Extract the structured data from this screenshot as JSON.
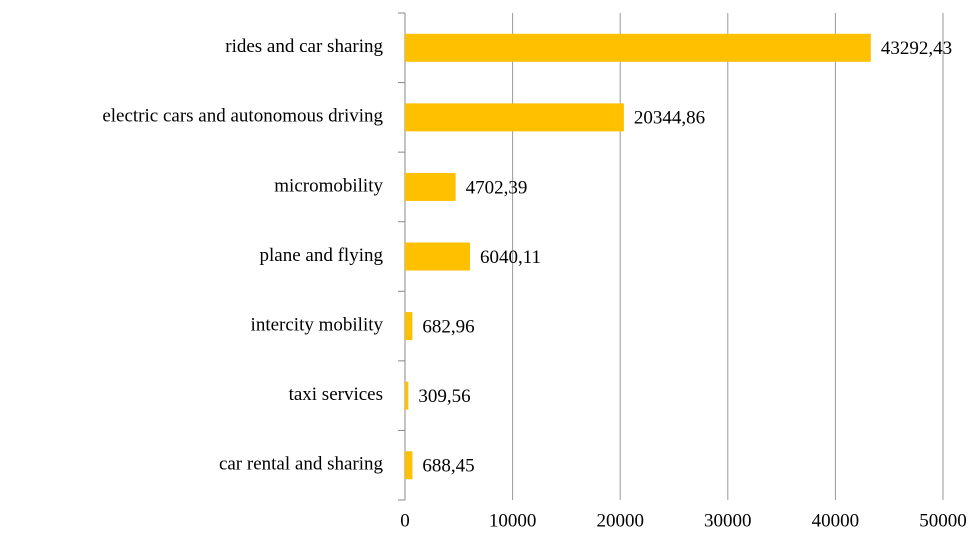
{
  "chart_data": {
    "type": "bar",
    "orientation": "horizontal",
    "categories": [
      "rides and car sharing",
      "electric cars and autonomous driving",
      "micromobility",
      "plane and flying",
      "intercity mobility",
      "taxi services",
      "car rental and sharing"
    ],
    "values": [
      43292.43,
      20344.86,
      4702.39,
      6040.11,
      682.96,
      309.56,
      688.45
    ],
    "value_labels": [
      "43292,43",
      "20344,86",
      "4702,39",
      "6040,11",
      "682,96",
      "309,56",
      "688,45"
    ],
    "color": "#ffc000",
    "xlim": [
      0,
      50000
    ],
    "xticks": [
      0,
      10000,
      20000,
      30000,
      40000,
      50000
    ],
    "grid": true
  }
}
